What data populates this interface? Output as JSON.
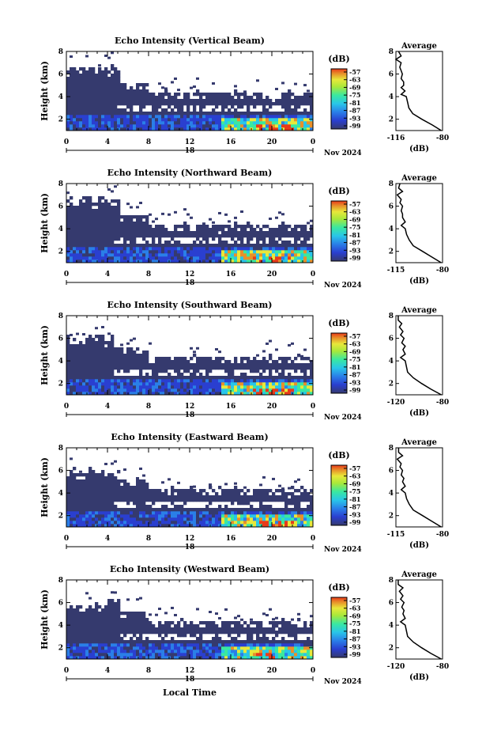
{
  "figure": {
    "x_axis_title": "Local Time",
    "date_label": "Nov 2024",
    "day_label": "18",
    "colorbar_unit": "(dB)",
    "colorbar_ticks": [
      "-57",
      "-63",
      "-69",
      "-75",
      "-81",
      "-87",
      "-93",
      "-99"
    ],
    "avg_title": "Average",
    "avg_xlabel": "(dB)",
    "y_axis_title": "Height (km)",
    "colors": {
      "background_echo": "#353a6e",
      "weak": "#2a3fd0",
      "moderate": "#29c6e8",
      "strong": "#e8e83a",
      "very_strong": "#e83a1a"
    }
  },
  "chart_data": [
    {
      "type": "heatmap",
      "title": "Echo Intensity (Vertical Beam)",
      "xlabel": "",
      "ylabel": "Height (km)",
      "x_ticks": [
        "0",
        "4",
        "8",
        "12",
        "16",
        "20",
        "0"
      ],
      "y_ticks": [
        "2",
        "4",
        "6",
        "8"
      ],
      "xlim": [
        0,
        24
      ],
      "ylim": [
        1,
        8
      ],
      "zlim": [
        -99,
        -57
      ],
      "avg_profile": {
        "title": "Average",
        "xlabel": "(dB)",
        "x_ticks": [
          "-116",
          "-80"
        ],
        "y_ticks": [
          "2",
          "4",
          "6",
          "8"
        ],
        "xlim": [
          -116,
          -80
        ],
        "ylim": [
          1,
          8
        ],
        "height_km": [
          1.0,
          1.5,
          2.0,
          2.5,
          3.0,
          3.5,
          4.0,
          4.2,
          4.5,
          4.8,
          5.0,
          5.3,
          5.6,
          6.0,
          6.3,
          6.6,
          7.0,
          7.3,
          7.6,
          8.0
        ],
        "intensity_db": [
          -81,
          -88,
          -96,
          -103,
          -106,
          -107,
          -108,
          -112,
          -109,
          -112,
          -110,
          -110,
          -112,
          -111,
          -112,
          -113,
          -112,
          -116,
          -112,
          -114
        ]
      }
    },
    {
      "type": "heatmap",
      "title": "Echo Intensity (Northward Beam)",
      "xlabel": "",
      "ylabel": "Height (km)",
      "x_ticks": [
        "0",
        "4",
        "8",
        "12",
        "16",
        "20",
        "0"
      ],
      "y_ticks": [
        "2",
        "4",
        "6",
        "8"
      ],
      "xlim": [
        0,
        24
      ],
      "ylim": [
        1,
        8
      ],
      "zlim": [
        -99,
        -57
      ],
      "avg_profile": {
        "title": "Average",
        "xlabel": "(dB)",
        "x_ticks": [
          "-115",
          "-80"
        ],
        "y_ticks": [
          "2",
          "4",
          "6",
          "8"
        ],
        "xlim": [
          -115,
          -80
        ],
        "ylim": [
          1,
          8
        ],
        "height_km": [
          1.0,
          1.5,
          2.0,
          2.5,
          3.0,
          3.5,
          4.0,
          4.3,
          4.6,
          5.0,
          5.3,
          5.6,
          6.0,
          6.3,
          6.6,
          7.0,
          7.3,
          7.6,
          8.0
        ],
        "intensity_db": [
          -81,
          -88,
          -95,
          -102,
          -105,
          -107,
          -108,
          -111,
          -108,
          -110,
          -110,
          -111,
          -110,
          -112,
          -111,
          -114,
          -110,
          -113,
          -112
        ]
      }
    },
    {
      "type": "heatmap",
      "title": "Echo Intensity (Southward Beam)",
      "xlabel": "",
      "ylabel": "Height (km)",
      "x_ticks": [
        "0",
        "4",
        "8",
        "12",
        "16",
        "20",
        "0"
      ],
      "y_ticks": [
        "2",
        "4",
        "6",
        "8"
      ],
      "xlim": [
        0,
        24
      ],
      "ylim": [
        1,
        8
      ],
      "zlim": [
        -99,
        -57
      ],
      "avg_profile": {
        "title": "Average",
        "xlabel": "(dB)",
        "x_ticks": [
          "-120",
          "-80"
        ],
        "y_ticks": [
          "2",
          "4",
          "6",
          "8"
        ],
        "xlim": [
          -120,
          -80
        ],
        "ylim": [
          1,
          8
        ],
        "height_km": [
          1.0,
          1.5,
          2.0,
          2.5,
          3.0,
          3.5,
          4.0,
          4.3,
          4.6,
          5.0,
          5.3,
          5.6,
          6.0,
          6.3,
          6.6,
          7.0,
          7.3,
          7.6,
          8.0
        ],
        "intensity_db": [
          -81,
          -90,
          -98,
          -105,
          -110,
          -111,
          -112,
          -116,
          -112,
          -114,
          -112,
          -115,
          -113,
          -116,
          -114,
          -117,
          -115,
          -118,
          -118
        ]
      }
    },
    {
      "type": "heatmap",
      "title": "Echo Intensity (Eastward Beam)",
      "xlabel": "",
      "ylabel": "Height (km)",
      "x_ticks": [
        "0",
        "4",
        "8",
        "12",
        "16",
        "20",
        "0"
      ],
      "y_ticks": [
        "2",
        "4",
        "6",
        "8"
      ],
      "xlim": [
        0,
        24
      ],
      "ylim": [
        1,
        8
      ],
      "zlim": [
        -99,
        -57
      ],
      "avg_profile": {
        "title": "Average",
        "xlabel": "(dB)",
        "x_ticks": [
          "-115",
          "-80"
        ],
        "y_ticks": [
          "2",
          "4",
          "6",
          "8"
        ],
        "xlim": [
          -115,
          -80
        ],
        "ylim": [
          1,
          8
        ],
        "height_km": [
          1.0,
          1.5,
          2.0,
          2.5,
          3.0,
          3.5,
          4.0,
          4.3,
          4.6,
          5.0,
          5.3,
          5.6,
          6.0,
          6.3,
          6.6,
          7.0,
          7.3,
          7.6,
          8.0
        ],
        "intensity_db": [
          -81,
          -88,
          -95,
          -102,
          -105,
          -107,
          -108,
          -111,
          -108,
          -110,
          -109,
          -111,
          -110,
          -112,
          -111,
          -114,
          -110,
          -113,
          -113
        ]
      }
    },
    {
      "type": "heatmap",
      "title": "Echo Intensity (Westward Beam)",
      "xlabel": "Local Time",
      "ylabel": "Height (km)",
      "x_ticks": [
        "0",
        "4",
        "8",
        "12",
        "16",
        "20",
        "0"
      ],
      "y_ticks": [
        "2",
        "4",
        "6",
        "8"
      ],
      "xlim": [
        0,
        24
      ],
      "ylim": [
        1,
        8
      ],
      "zlim": [
        -99,
        -57
      ],
      "avg_profile": {
        "title": "Average",
        "xlabel": "(dB)",
        "x_ticks": [
          "-120",
          "-80"
        ],
        "y_ticks": [
          "2",
          "4",
          "6",
          "8"
        ],
        "xlim": [
          -120,
          -80
        ],
        "ylim": [
          1,
          8
        ],
        "height_km": [
          1.0,
          1.5,
          2.0,
          2.5,
          3.0,
          3.5,
          4.0,
          4.3,
          4.6,
          5.0,
          5.3,
          5.6,
          6.0,
          6.3,
          6.6,
          7.0,
          7.3,
          7.6,
          8.0
        ],
        "intensity_db": [
          -81,
          -90,
          -98,
          -105,
          -110,
          -111,
          -112,
          -116,
          -112,
          -114,
          -113,
          -115,
          -113,
          -116,
          -114,
          -117,
          -114,
          -118,
          -118
        ]
      }
    }
  ]
}
